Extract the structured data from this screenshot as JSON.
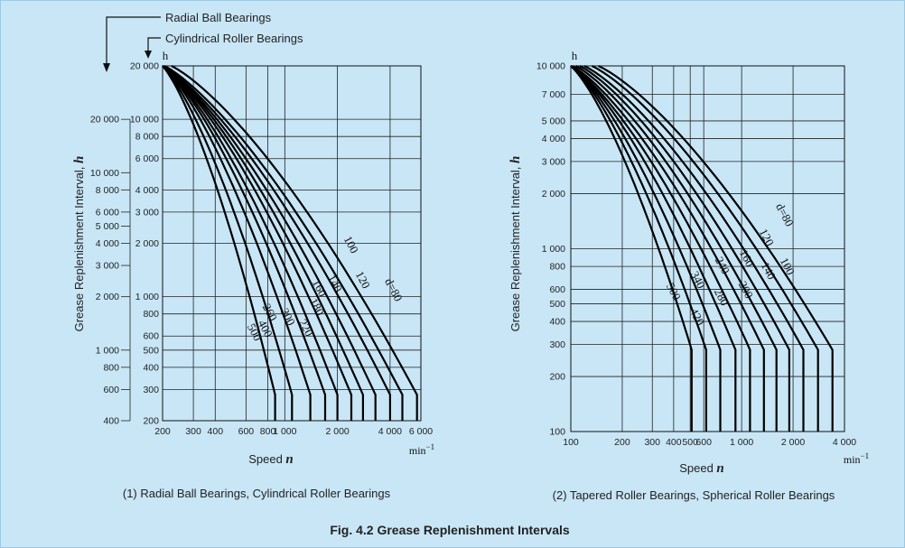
{
  "figure_title": "Fig. 4.2 Grease Replenishment Intervals",
  "colors": {
    "background": "#c8e6f6",
    "grid": "#222222",
    "curve": "#000000"
  },
  "chart_data": [
    {
      "type": "line",
      "subtitle": "(1) Radial Ball Bearings, Cylindrical Roller Bearings",
      "ylabel": "Grease Replenishment Interval, h",
      "y_unit": "h",
      "xlabel": "Speed n",
      "x_unit": "min⁻¹",
      "x_scale": "log",
      "y_scale": "log",
      "xlim": [
        200,
        6000
      ],
      "grid": true,
      "x_ticks": [
        200,
        300,
        400,
        600,
        800,
        1000,
        2000,
        4000,
        6000
      ],
      "x_tick_labels": [
        "200",
        "300",
        "400",
        "600",
        "800",
        "1 000",
        "2 000",
        "4 000",
        "6 000"
      ],
      "y_axes": [
        {
          "name": "Cylindrical Roller Bearings",
          "range": [
            200,
            20000
          ],
          "ticks": [
            20000,
            10000,
            8000,
            6000,
            4000,
            3000,
            2000,
            1000,
            800,
            600,
            500,
            400,
            300,
            200
          ],
          "labels": [
            "20 000",
            "10 000",
            "8 000",
            "6 000",
            "4 000",
            "3 000",
            "2 000",
            "1 000",
            "800",
            "600",
            "500",
            "400",
            "300",
            "200"
          ]
        },
        {
          "name": "Radial Ball Bearings",
          "range": [
            400,
            40000
          ],
          "ticks": [
            20000,
            10000,
            8000,
            6000,
            5000,
            4000,
            3000,
            2000,
            1000,
            800,
            600,
            400
          ],
          "labels": [
            "20 000",
            "10 000",
            "8 000",
            "6 000",
            "5 000",
            "4 000",
            "3 000",
            "2 000",
            "1 000",
            "800",
            "600",
            "400"
          ]
        }
      ],
      "annotations": {
        "radial": "Radial Ball Bearings",
        "cylindrical": "Cylindrical Roller Bearings"
      },
      "series": [
        {
          "name": "d=80",
          "n_at_y_top": 225,
          "n_vertical": 5700
        },
        {
          "name": "100",
          "n_at_y_top": 205,
          "n_vertical": 4700
        },
        {
          "name": "120",
          "n_at_y_top": 200,
          "n_vertical": 4000
        },
        {
          "name": "140",
          "n_at_y_top": 200,
          "n_vertical": 3300
        },
        {
          "name": "160",
          "n_at_y_top": 200,
          "n_vertical": 2800
        },
        {
          "name": "180",
          "n_at_y_top": 200,
          "n_vertical": 2400
        },
        {
          "name": "220",
          "n_at_y_top": 200,
          "n_vertical": 2000
        },
        {
          "name": "260",
          "n_at_y_top": 200,
          "n_vertical": 1700
        },
        {
          "name": "300",
          "n_at_y_top": 200,
          "n_vertical": 1400
        },
        {
          "name": "400",
          "n_at_y_top": 200,
          "n_vertical": 1100
        },
        {
          "name": "500",
          "n_at_y_top": 200,
          "n_vertical": 880
        }
      ]
    },
    {
      "type": "line",
      "subtitle": "(2) Tapered Roller Bearings, Spherical Roller Bearings",
      "ylabel": "Grease Replenishment Interval, h",
      "y_unit": "h",
      "xlabel": "Speed n",
      "x_unit": "min⁻¹",
      "x_scale": "log",
      "y_scale": "log",
      "xlim": [
        100,
        4000
      ],
      "ylim": [
        100,
        10000
      ],
      "grid": true,
      "x_ticks": [
        100,
        200,
        300,
        400,
        500,
        600,
        1000,
        2000,
        4000
      ],
      "x_tick_labels": [
        "100",
        "200",
        "300",
        "400",
        "500",
        "600",
        "1 000",
        "2 000",
        "4 000"
      ],
      "y_ticks": [
        10000,
        7000,
        5000,
        4000,
        3000,
        2000,
        1000,
        800,
        600,
        500,
        400,
        300,
        200,
        100
      ],
      "y_tick_labels": [
        "10 000",
        "7 000",
        "5 000",
        "4 000",
        "3 000",
        "2 000",
        "1 000",
        "800",
        "600",
        "500",
        "400",
        "300",
        "200",
        "100"
      ],
      "series": [
        {
          "name": "d=80",
          "n_at_y_top": 145,
          "n_vertical": 3400
        },
        {
          "name": "100",
          "n_at_y_top": 133,
          "n_vertical": 2800
        },
        {
          "name": "120",
          "n_at_y_top": 120,
          "n_vertical": 2300
        },
        {
          "name": "140",
          "n_at_y_top": 113,
          "n_vertical": 1900
        },
        {
          "name": "160",
          "n_at_y_top": 107,
          "n_vertical": 1600
        },
        {
          "name": "200",
          "n_at_y_top": 102,
          "n_vertical": 1350
        },
        {
          "name": "240",
          "n_at_y_top": 100,
          "n_vertical": 1120
        },
        {
          "name": "280",
          "n_at_y_top": 100,
          "n_vertical": 920
        },
        {
          "name": "340",
          "n_at_y_top": 100,
          "n_vertical": 750
        },
        {
          "name": "420",
          "n_at_y_top": 100,
          "n_vertical": 620
        },
        {
          "name": "500",
          "n_at_y_top": 100,
          "n_vertical": 510
        }
      ]
    }
  ]
}
